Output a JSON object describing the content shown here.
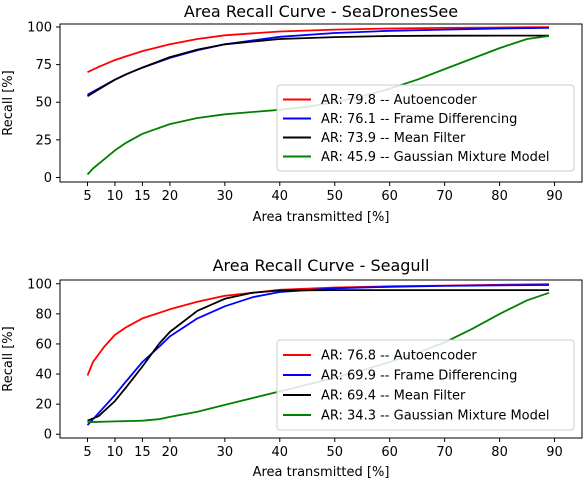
{
  "chart_data": [
    {
      "type": "line",
      "title": "Area Recall Curve - SeaDronesSee",
      "xlabel": "Area transmitted [%]",
      "ylabel": "Recall [%]",
      "xlim": [
        0,
        95
      ],
      "ylim": [
        -3,
        102
      ],
      "xticks": [
        5,
        10,
        15,
        20,
        30,
        40,
        50,
        60,
        70,
        80,
        90
      ],
      "yticks": [
        0,
        25,
        50,
        75,
        100
      ],
      "grid": false,
      "legend_position": "center-right",
      "series": [
        {
          "name": "AR: 79.8 -- Autoencoder",
          "color": "#ff0000",
          "x": [
            5,
            7,
            10,
            12,
            15,
            20,
            25,
            30,
            40,
            50,
            60,
            70,
            80,
            89
          ],
          "y": [
            70,
            73.5,
            78,
            80.5,
            84,
            88.5,
            92,
            94.5,
            97,
            98.3,
            99,
            99.4,
            99.7,
            99.9
          ]
        },
        {
          "name": "AR: 76.1 -- Frame Differencing",
          "color": "#0000ff",
          "x": [
            5,
            7,
            10,
            12,
            15,
            20,
            25,
            30,
            40,
            50,
            60,
            70,
            80,
            89
          ],
          "y": [
            55,
            59,
            65,
            68.5,
            73,
            79.5,
            84.5,
            88.5,
            93.5,
            96,
            97.5,
            98.3,
            99,
            99.4
          ]
        },
        {
          "name": "AR: 73.9 -- Mean Filter",
          "color": "#000000",
          "x": [
            5,
            7,
            10,
            12,
            15,
            20,
            25,
            30,
            40,
            50,
            60,
            70,
            80,
            89
          ],
          "y": [
            54,
            58.5,
            65,
            68.5,
            73,
            80,
            85,
            88.5,
            92,
            93.3,
            94,
            94.2,
            94.3,
            94.3
          ]
        },
        {
          "name": "AR: 45.9 -- Gaussian Mixture Model",
          "color": "#008000",
          "x": [
            5,
            6,
            8,
            10,
            12,
            15,
            20,
            25,
            30,
            35,
            40,
            45,
            50,
            55,
            60,
            65,
            70,
            75,
            80,
            85,
            89
          ],
          "y": [
            2,
            6,
            12,
            18,
            23,
            29,
            35.5,
            39.5,
            42,
            43.5,
            45,
            47,
            50,
            54,
            59,
            65,
            72,
            79,
            86,
            92,
            94
          ]
        }
      ]
    },
    {
      "type": "line",
      "title": "Area Recall Curve - Seagull",
      "xlabel": "Area transmitted [%]",
      "ylabel": "Recall [%]",
      "xlim": [
        0,
        95
      ],
      "ylim": [
        -2.5,
        102.5
      ],
      "xticks": [
        5,
        10,
        15,
        20,
        30,
        40,
        50,
        60,
        70,
        80,
        90
      ],
      "yticks": [
        0,
        20,
        40,
        60,
        80,
        100
      ],
      "grid": false,
      "legend_position": "center-right",
      "series": [
        {
          "name": "AR: 76.8 -- Autoencoder",
          "color": "#ff0000",
          "x": [
            5,
            6,
            8,
            10,
            12,
            15,
            20,
            25,
            30,
            40,
            50,
            60,
            70,
            80,
            89
          ],
          "y": [
            39,
            48,
            58,
            66,
            71,
            77,
            83,
            88,
            92,
            96,
            97.5,
            98.3,
            98.8,
            99.3,
            99.7
          ]
        },
        {
          "name": "AR: 69.9 -- Frame Differencing",
          "color": "#0000ff",
          "x": [
            5,
            7,
            10,
            12,
            15,
            18,
            20,
            25,
            30,
            35,
            40,
            50,
            60,
            70,
            80,
            89
          ],
          "y": [
            6,
            14,
            26,
            35,
            48,
            58,
            65,
            77,
            85,
            91,
            94.5,
            97,
            98,
            98.6,
            99,
            99.2
          ]
        },
        {
          "name": "AR: 69.4 -- Mean Filter",
          "color": "#000000",
          "x": [
            5,
            7,
            10,
            12,
            15,
            18,
            20,
            25,
            30,
            35,
            40,
            50,
            60,
            70,
            80,
            89
          ],
          "y": [
            9,
            12,
            22,
            31,
            45,
            60,
            68,
            82,
            90,
            94,
            95.5,
            95.8,
            95.8,
            95.8,
            95.8,
            95.8
          ]
        },
        {
          "name": "AR: 34.3 -- Gaussian Mixture Model",
          "color": "#008000",
          "x": [
            5,
            10,
            15,
            18,
            20,
            25,
            30,
            35,
            40,
            45,
            50,
            55,
            60,
            65,
            70,
            75,
            80,
            85,
            89
          ],
          "y": [
            8,
            8.5,
            9,
            10,
            11.5,
            15,
            19.5,
            24,
            28.5,
            33,
            37.5,
            42.5,
            48,
            54,
            61,
            70,
            80,
            89,
            94
          ]
        }
      ]
    }
  ]
}
